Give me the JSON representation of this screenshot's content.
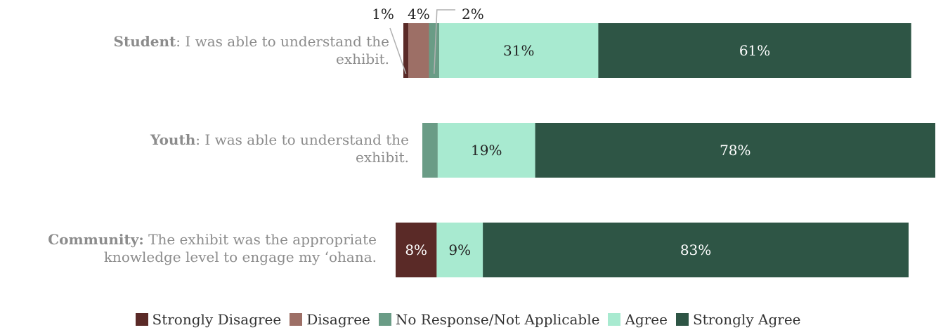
{
  "chart_data": {
    "type": "bar",
    "orientation": "horizontal",
    "stacked": true,
    "categories": [
      {
        "bold": "Student",
        "rest": ": I was able to understand the exhibit."
      },
      {
        "bold": "Youth",
        "rest": ": I was able to understand the exhibit."
      },
      {
        "bold": "Community:",
        "rest": " The exhibit was the appropriate knowledge level to engage my ‘ohana."
      }
    ],
    "series": [
      {
        "name": "Strongly Disagree",
        "color": "#5a2a27",
        "values": [
          1,
          0,
          8
        ],
        "labels": [
          "1%",
          "",
          "8%"
        ]
      },
      {
        "name": "Disagree",
        "color": "#9d6f66",
        "values": [
          4,
          0,
          0
        ],
        "labels": [
          "4%",
          "",
          ""
        ]
      },
      {
        "name": "No Response/Not Applicable",
        "color": "#6a9c86",
        "values": [
          2,
          3,
          0
        ],
        "labels": [
          "2%",
          "3%",
          ""
        ]
      },
      {
        "name": "Agree",
        "color": "#a8ead0",
        "values": [
          31,
          19,
          9
        ],
        "labels": [
          "31%",
          "19%",
          "9%"
        ]
      },
      {
        "name": "Strongly Agree",
        "color": "#2e5545",
        "values": [
          61,
          78,
          83
        ],
        "labels": [
          "61%",
          "78%",
          "83%"
        ]
      }
    ],
    "grid": false,
    "legend_position": "bottom"
  }
}
